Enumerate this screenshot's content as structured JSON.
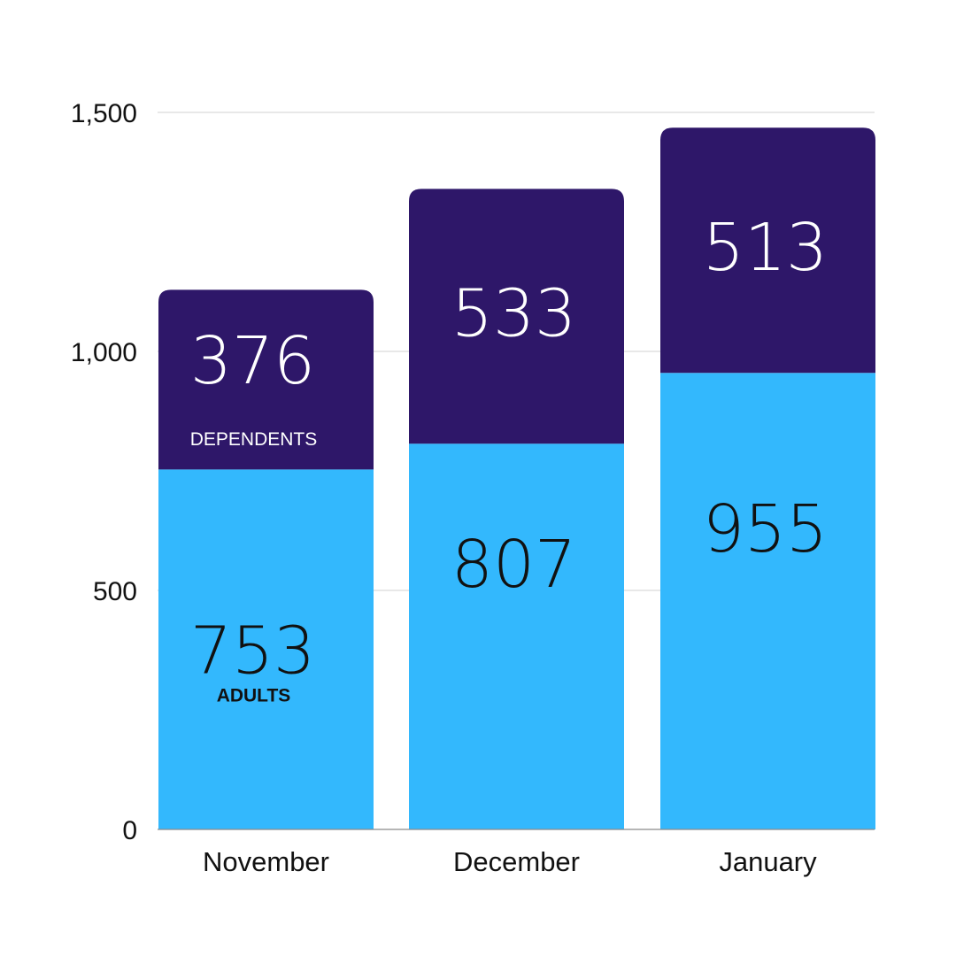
{
  "chart_data": {
    "type": "bar",
    "stacked": true,
    "categories": [
      "November",
      "December",
      "January"
    ],
    "series": [
      {
        "name": "ADULTS",
        "values": [
          753,
          807,
          955
        ],
        "color": "#33b8fd"
      },
      {
        "name": "DEPENDENTS",
        "values": [
          376,
          533,
          513
        ],
        "color": "#2e1769"
      }
    ],
    "series_label_shown_on": "November",
    "value_text_colors": {
      "ADULTS": "#111111",
      "DEPENDENTS": "#ffffff"
    },
    "ylim": [
      0,
      1500
    ],
    "yticks": [
      {
        "value": 0,
        "label": "0"
      },
      {
        "value": 500,
        "label": "500"
      },
      {
        "value": 1000,
        "label": "1,000"
      },
      {
        "value": 1500,
        "label": "1,500"
      }
    ],
    "grid": true,
    "grid_color": "#d9d9d9",
    "legend": "none",
    "title": "",
    "xlabel": "",
    "ylabel": ""
  }
}
